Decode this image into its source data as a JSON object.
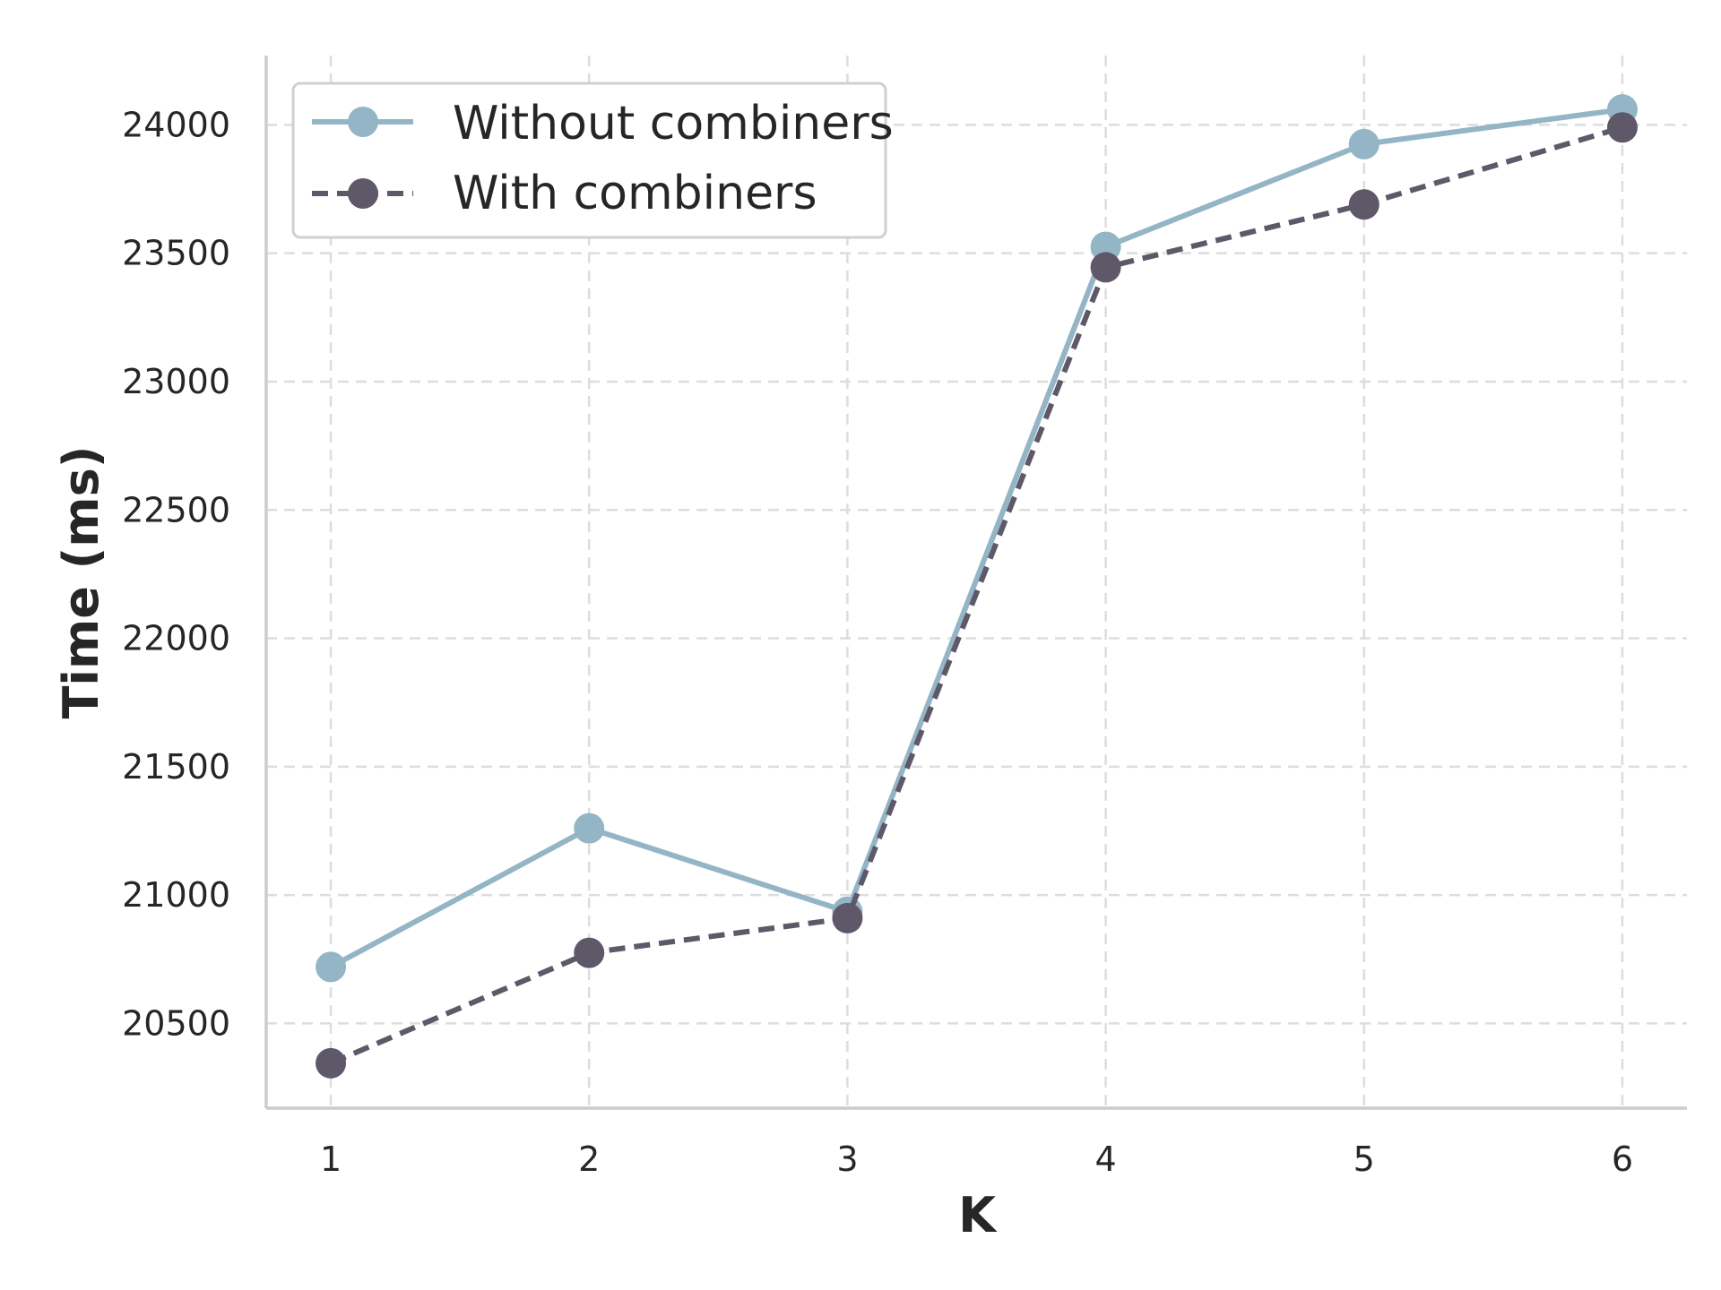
{
  "chart_data": {
    "type": "line",
    "title": "",
    "xlabel": "K",
    "ylabel": "Time (ms)",
    "x": [
      1,
      2,
      3,
      4,
      5,
      6
    ],
    "xticks": [
      "1",
      "2",
      "3",
      "4",
      "5",
      "6"
    ],
    "yticks": [
      "20500",
      "21000",
      "21500",
      "22000",
      "22500",
      "23000",
      "23500",
      "24000"
    ],
    "ylim": [
      20170,
      24270
    ],
    "xlim": [
      0.75,
      6.25
    ],
    "grid": true,
    "legend_position": "top-left",
    "series": [
      {
        "name": "Without combiners",
        "values": [
          20720,
          21260,
          20935,
          23525,
          23925,
          24060
        ],
        "color": "#93b5c6",
        "line_style": "solid",
        "marker": "circle"
      },
      {
        "name": "With combiners",
        "values": [
          20345,
          20775,
          20910,
          23445,
          23690,
          23990
        ],
        "color": "#5e5869",
        "line_style": "dashed",
        "marker": "circle"
      }
    ]
  }
}
